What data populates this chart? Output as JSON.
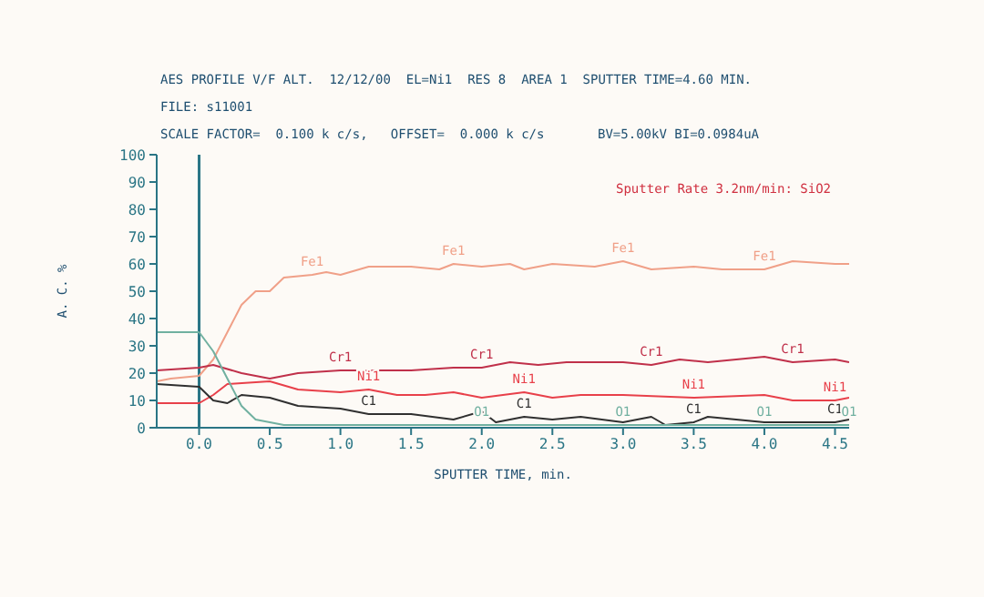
{
  "chart_data": {
    "type": "line",
    "title": "AES PROFILE V/F ALT.  12/12/00  EL=Ni1  RES 8  AREA 1  SPUTTER TIME=4.60 MIN.",
    "subtitle": "FILE: s11001",
    "xlabel": "SPUTTER TIME, min.",
    "ylabel": "A. C. %",
    "xlim": [
      -0.3,
      4.6
    ],
    "xticks": [
      {
        "value": 0,
        "label": "0.0"
      },
      {
        "value": 0.5,
        "label": "0.5"
      },
      {
        "value": 1,
        "label": "1.0"
      },
      {
        "value": 1.5,
        "label": "1.5"
      },
      {
        "value": 2,
        "label": "2.0"
      },
      {
        "value": 2.5,
        "label": "2.5"
      },
      {
        "value": 3,
        "label": "3.0"
      },
      {
        "value": 3.5,
        "label": "3.5"
      },
      {
        "value": 4,
        "label": "4.0"
      },
      {
        "value": 4.5,
        "label": "4.5"
      }
    ],
    "ylim": [
      0,
      100
    ],
    "yticks": [
      0,
      10,
      20,
      30,
      40,
      50,
      60,
      70,
      80,
      90,
      100
    ],
    "marker": "none",
    "line_style": "solid",
    "ref_lines": [
      {
        "axis": "x",
        "value": 0,
        "color": "#2a7585"
      }
    ],
    "series": [
      {
        "name": "Fe1",
        "color": "#f0a088",
        "x": [
          -0.3,
          -0.2,
          0,
          0.1,
          0.2,
          0.3,
          0.4,
          0.5,
          0.6,
          0.8,
          0.9,
          1.0,
          1.2,
          1.5,
          1.7,
          1.8,
          2.0,
          2.2,
          2.3,
          2.5,
          2.8,
          3.0,
          3.2,
          3.5,
          3.7,
          4.0,
          4.2,
          4.5,
          4.6
        ],
        "values": [
          17,
          18,
          19,
          25,
          35,
          45,
          50,
          50,
          55,
          56,
          57,
          56,
          59,
          59,
          58,
          60,
          59,
          60,
          58,
          60,
          59,
          61,
          58,
          59,
          58,
          58,
          61,
          60,
          60
        ]
      },
      {
        "name": "Cr1",
        "color": "#c0304a",
        "x": [
          -0.3,
          0,
          0.1,
          0.3,
          0.5,
          0.7,
          1.0,
          1.5,
          1.8,
          2.0,
          2.2,
          2.4,
          2.6,
          3.0,
          3.2,
          3.4,
          3.6,
          4.0,
          4.2,
          4.5,
          4.6
        ],
        "values": [
          21,
          22,
          23,
          20,
          18,
          20,
          21,
          21,
          22,
          22,
          24,
          23,
          24,
          24,
          23,
          25,
          24,
          26,
          24,
          25,
          24
        ]
      },
      {
        "name": "Ni1",
        "color": "#e8404a",
        "x": [
          -0.3,
          0,
          0.1,
          0.2,
          0.5,
          0.7,
          1.0,
          1.2,
          1.4,
          1.6,
          1.8,
          2.0,
          2.3,
          2.5,
          2.7,
          3.0,
          3.5,
          4.0,
          4.2,
          4.5,
          4.6
        ],
        "values": [
          9,
          9,
          12,
          16,
          17,
          14,
          13,
          14,
          12,
          12,
          13,
          11,
          13,
          11,
          12,
          12,
          11,
          12,
          10,
          10,
          11
        ]
      },
      {
        "name": "C1",
        "color": "#303030",
        "x": [
          -0.3,
          0,
          0.1,
          0.2,
          0.3,
          0.5,
          0.7,
          1.0,
          1.2,
          1.5,
          1.8,
          2.0,
          2.1,
          2.3,
          2.5,
          2.7,
          3.0,
          3.2,
          3.3,
          3.5,
          3.6,
          3.8,
          4.0,
          4.2,
          4.5,
          4.6
        ],
        "values": [
          16,
          15,
          10,
          9,
          12,
          11,
          8,
          7,
          5,
          5,
          3,
          6,
          2,
          4,
          3,
          4,
          2,
          4,
          1,
          2,
          4,
          3,
          2,
          2,
          2,
          3
        ]
      },
      {
        "name": "O1",
        "color": "#70b0a0",
        "x": [
          -0.3,
          0,
          0.1,
          0.2,
          0.3,
          0.4,
          0.6,
          0.8,
          1.0,
          2.0,
          3.0,
          4.0,
          4.6
        ],
        "values": [
          35,
          35,
          28,
          18,
          8,
          3,
          1,
          1,
          1,
          1,
          1,
          1,
          1
        ]
      }
    ],
    "annotations": [
      "SCALE FACTOR=  0.100 k c/s,   OFFSET=  0.000 k c/s",
      "BV=5.00kV BI=0.0984uA",
      "Sputter Rate 3.2nm/min: SiO2"
    ]
  }
}
